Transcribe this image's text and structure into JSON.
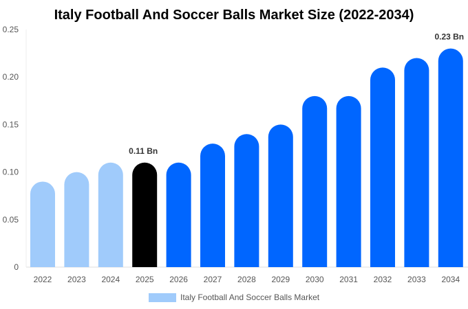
{
  "chart_data": {
    "type": "bar",
    "title": "Italy Football And Soccer Balls Market Size (2022-2034)",
    "categories": [
      "2022",
      "2023",
      "2024",
      "2025",
      "2026",
      "2027",
      "2028",
      "2029",
      "2030",
      "2031",
      "2032",
      "2033",
      "2034"
    ],
    "series": [
      {
        "name": "Italy Football And Soccer Balls Market",
        "values": [
          0.09,
          0.1,
          0.11,
          0.11,
          0.11,
          0.13,
          0.14,
          0.15,
          0.18,
          0.18,
          0.21,
          0.22,
          0.23
        ]
      }
    ],
    "ylim": [
      0,
      0.25
    ],
    "yticks": [
      "0",
      "0.05",
      "0.10",
      "0.15",
      "0.20",
      "0.25"
    ],
    "data_labels": {
      "3": "0.11 Bn",
      "12": "0.23 Bn"
    },
    "grid": false,
    "legend_placement": "bottom",
    "colors": {
      "historical": "#a0cbfb",
      "current": "#000000",
      "forecast": "#0066ff",
      "legend": "#a0cbfb"
    }
  }
}
